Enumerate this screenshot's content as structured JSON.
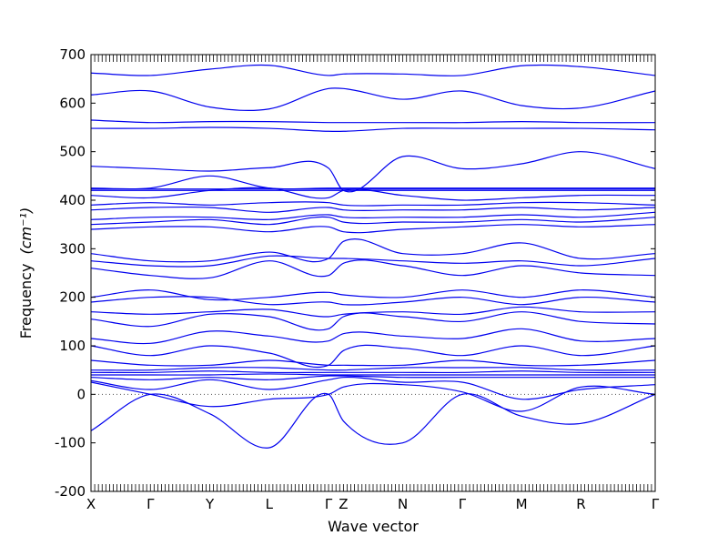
{
  "chart_data": {
    "type": "line",
    "title": "",
    "xlabel": "Wave vector",
    "ylabel": "Frequency",
    "ylabel_unit": "(cm⁻¹)",
    "ylim": [
      -200,
      700
    ],
    "yticks": [
      -200,
      -100,
      0,
      100,
      200,
      300,
      400,
      500,
      600,
      700
    ],
    "xlim": [
      0,
      9.5
    ],
    "high_symmetry_points": [
      {
        "label": "X",
        "x": 0
      },
      {
        "label": "Γ",
        "x": 1
      },
      {
        "label": "Y",
        "x": 2
      },
      {
        "label": "L",
        "x": 3
      },
      {
        "label": "Γ",
        "x": 4
      },
      {
        "label": "Z",
        "x": 4.25
      },
      {
        "label": "N",
        "x": 5.25
      },
      {
        "label": "Γ",
        "x": 6.25
      },
      {
        "label": "M",
        "x": 7.25
      },
      {
        "label": "R",
        "x": 8.25
      },
      {
        "label": "Γ",
        "x": 9.5
      }
    ],
    "minor_xtick_step": 0.0625,
    "zero_line": true,
    "line_color": "#0000ee",
    "zero_line_color": "#555555",
    "series": [
      {
        "values": [
          -75,
          0,
          -40,
          -110,
          0,
          -55,
          -100,
          0,
          -45,
          -60,
          0
        ]
      },
      {
        "values": [
          25,
          0,
          -25,
          -10,
          0,
          15,
          20,
          5,
          -35,
          15,
          0
        ]
      },
      {
        "values": [
          28,
          10,
          30,
          10,
          30,
          35,
          25,
          25,
          -10,
          10,
          20
        ]
      },
      {
        "values": [
          35,
          30,
          35,
          30,
          38,
          38,
          35,
          35,
          35,
          35,
          35
        ]
      },
      {
        "values": [
          40,
          40,
          40,
          42,
          40,
          40,
          40,
          40,
          40,
          40,
          40
        ]
      },
      {
        "values": [
          45,
          45,
          48,
          45,
          45,
          45,
          45,
          45,
          48,
          45,
          45
        ]
      },
      {
        "values": [
          50,
          50,
          55,
          55,
          50,
          50,
          55,
          55,
          55,
          50,
          50
        ]
      },
      {
        "values": [
          70,
          60,
          60,
          70,
          60,
          60,
          60,
          70,
          60,
          60,
          70
        ]
      },
      {
        "values": [
          100,
          80,
          100,
          85,
          60,
          90,
          95,
          80,
          100,
          80,
          100
        ]
      },
      {
        "values": [
          115,
          105,
          130,
          120,
          110,
          125,
          120,
          115,
          135,
          110,
          115
        ]
      },
      {
        "values": [
          155,
          140,
          165,
          160,
          135,
          160,
          160,
          150,
          170,
          150,
          145
        ]
      },
      {
        "values": [
          170,
          165,
          170,
          175,
          160,
          165,
          170,
          165,
          180,
          170,
          170
        ]
      },
      {
        "values": [
          190,
          200,
          200,
          185,
          190,
          185,
          190,
          200,
          185,
          200,
          190
        ]
      },
      {
        "values": [
          200,
          215,
          195,
          200,
          210,
          205,
          200,
          215,
          200,
          215,
          200
        ]
      },
      {
        "values": [
          260,
          245,
          240,
          275,
          245,
          270,
          265,
          245,
          265,
          250,
          245
        ]
      },
      {
        "values": [
          275,
          265,
          265,
          285,
          280,
          280,
          275,
          270,
          275,
          265,
          280
        ]
      },
      {
        "values": [
          290,
          275,
          275,
          293,
          280,
          315,
          290,
          290,
          312,
          280,
          290
        ]
      },
      {
        "values": [
          340,
          345,
          345,
          335,
          345,
          335,
          340,
          345,
          350,
          345,
          350
        ]
      },
      {
        "values": [
          350,
          355,
          360,
          350,
          365,
          355,
          355,
          355,
          360,
          355,
          365
        ]
      },
      {
        "values": [
          360,
          365,
          365,
          360,
          370,
          365,
          365,
          365,
          370,
          365,
          375
        ]
      },
      {
        "values": [
          380,
          385,
          385,
          375,
          385,
          380,
          380,
          380,
          385,
          380,
          385
        ]
      },
      {
        "values": [
          390,
          395,
          390,
          395,
          395,
          390,
          390,
          390,
          395,
          395,
          390
        ]
      },
      {
        "values": [
          410,
          405,
          420,
          425,
          405,
          420,
          410,
          400,
          405,
          410,
          410
        ]
      },
      {
        "values": [
          420,
          420,
          420,
          420,
          420,
          420,
          420,
          420,
          420,
          420,
          420
        ]
      },
      {
        "values": [
          423,
          423,
          423,
          423,
          423,
          423,
          423,
          423,
          423,
          423,
          423
        ]
      },
      {
        "values": [
          425,
          425,
          450,
          425,
          425,
          425,
          425,
          425,
          425,
          425,
          425
        ]
      },
      {
        "values": [
          470,
          465,
          460,
          467,
          466,
          420,
          490,
          465,
          475,
          500,
          465
        ]
      },
      {
        "values": [
          548,
          548,
          550,
          548,
          542,
          542,
          548,
          548,
          548,
          548,
          545
        ]
      },
      {
        "values": [
          565,
          560,
          562,
          562,
          560,
          560,
          560,
          560,
          562,
          560,
          560
        ]
      },
      {
        "values": [
          617,
          625,
          592,
          588,
          630,
          630,
          608,
          625,
          595,
          590,
          625
        ]
      },
      {
        "values": [
          662,
          657,
          670,
          678,
          657,
          660,
          660,
          657,
          677,
          675,
          657
        ]
      }
    ]
  }
}
